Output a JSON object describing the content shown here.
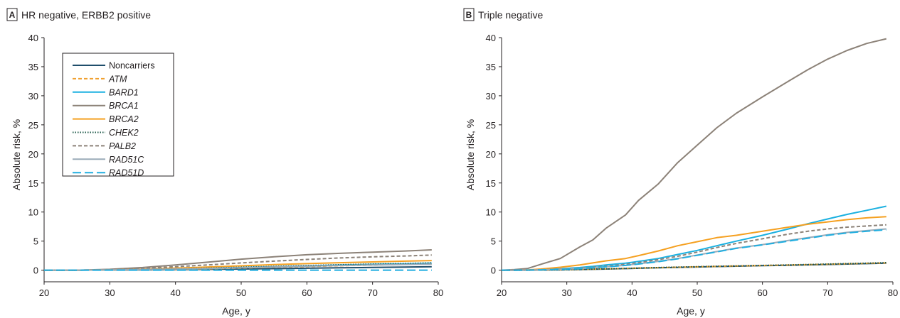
{
  "chart_data": [
    {
      "type": "line",
      "panel_letter": "A",
      "title": "HR negative, ERBB2 positive",
      "xlabel": "Age, y",
      "ylabel": "Absolute risk, %",
      "xlim": [
        20,
        80
      ],
      "ylim": [
        -2,
        40
      ],
      "xticks": [
        20,
        30,
        40,
        50,
        60,
        70,
        80
      ],
      "yticks": [
        0,
        5,
        10,
        15,
        20,
        25,
        30,
        35,
        40
      ],
      "grid": false,
      "legend_position": "top-left",
      "x": [
        20,
        25,
        30,
        35,
        40,
        45,
        50,
        55,
        60,
        65,
        70,
        75,
        79
      ],
      "series": [
        {
          "name": "Noncarriers",
          "color": "#1f4e6b",
          "style": "solid",
          "values": [
            0,
            0,
            0.02,
            0.05,
            0.09,
            0.14,
            0.2,
            0.26,
            0.33,
            0.4,
            0.47,
            0.54,
            0.6
          ]
        },
        {
          "name": "ATM",
          "color": "#f0a030",
          "style": "dash",
          "values": [
            0,
            0,
            0.03,
            0.08,
            0.15,
            0.25,
            0.37,
            0.5,
            0.63,
            0.76,
            0.88,
            1.0,
            1.1
          ]
        },
        {
          "name": "BARD1",
          "color": "#1ab0e0",
          "style": "solid",
          "values": [
            0,
            0,
            0.04,
            0.1,
            0.2,
            0.32,
            0.46,
            0.6,
            0.75,
            0.88,
            1.0,
            1.1,
            1.2
          ]
        },
        {
          "name": "BRCA1",
          "color": "#8c8278",
          "style": "solid",
          "values": [
            0,
            0,
            0.15,
            0.45,
            0.9,
            1.4,
            1.9,
            2.3,
            2.65,
            2.9,
            3.1,
            3.3,
            3.5
          ]
        },
        {
          "name": "BRCA2",
          "color": "#f5a020",
          "style": "solid",
          "values": [
            0,
            0,
            0.06,
            0.18,
            0.35,
            0.55,
            0.75,
            0.95,
            1.12,
            1.28,
            1.42,
            1.55,
            1.65
          ]
        },
        {
          "name": "CHEK2",
          "color": "#1f5a4a",
          "style": "dot",
          "values": [
            0,
            0,
            0.05,
            0.12,
            0.22,
            0.35,
            0.5,
            0.65,
            0.8,
            0.93,
            1.05,
            1.15,
            1.25
          ]
        },
        {
          "name": "PALB2",
          "color": "#8c8278",
          "style": "dash",
          "values": [
            0,
            0,
            0.1,
            0.3,
            0.6,
            0.9,
            1.25,
            1.55,
            1.85,
            2.1,
            2.3,
            2.45,
            2.6
          ]
        },
        {
          "name": "RAD51C",
          "color": "#9aabb8",
          "style": "solid",
          "values": [
            0,
            0,
            0.05,
            0.12,
            0.2,
            0.3,
            0.42,
            0.55,
            0.68,
            0.8,
            0.9,
            0.98,
            1.05
          ]
        },
        {
          "name": "RAD51D",
          "color": "#20aee0",
          "style": "longdash",
          "values": [
            0,
            0,
            0,
            0,
            0,
            0,
            0,
            0,
            0,
            0,
            0,
            0,
            0
          ]
        }
      ]
    },
    {
      "type": "line",
      "panel_letter": "B",
      "title": "Triple negative",
      "xlabel": "Age, y",
      "ylabel": "Absolute risk, %",
      "xlim": [
        20,
        80
      ],
      "ylim": [
        -2,
        40
      ],
      "xticks": [
        20,
        30,
        40,
        50,
        60,
        70,
        80
      ],
      "yticks": [
        0,
        5,
        10,
        15,
        20,
        25,
        30,
        35,
        40
      ],
      "grid": false,
      "x": [
        20,
        22,
        24,
        26,
        29,
        32,
        34,
        36,
        39,
        41,
        44,
        47,
        50,
        53,
        56,
        60,
        64,
        67,
        70,
        73,
        76,
        79
      ],
      "series": [
        {
          "name": "Noncarriers",
          "color": "#1f4e6b",
          "style": "solid",
          "values": [
            0,
            0,
            0,
            0.02,
            0.05,
            0.1,
            0.15,
            0.2,
            0.27,
            0.33,
            0.4,
            0.48,
            0.55,
            0.62,
            0.68,
            0.77,
            0.85,
            0.92,
            0.98,
            1.05,
            1.12,
            1.2
          ]
        },
        {
          "name": "ATM",
          "color": "#f0a030",
          "style": "dash",
          "values": [
            0,
            0,
            0,
            0.02,
            0.06,
            0.12,
            0.17,
            0.23,
            0.3,
            0.36,
            0.43,
            0.5,
            0.58,
            0.65,
            0.72,
            0.8,
            0.88,
            0.95,
            1.02,
            1.1,
            1.17,
            1.25
          ]
        },
        {
          "name": "BARD1",
          "color": "#1ab0e0",
          "style": "solid",
          "values": [
            0,
            0,
            0.02,
            0.1,
            0.25,
            0.45,
            0.65,
            0.9,
            1.2,
            1.5,
            2.0,
            2.7,
            3.4,
            4.2,
            5.0,
            6.0,
            7.1,
            8.0,
            8.8,
            9.6,
            10.3,
            11.0
          ]
        },
        {
          "name": "BRCA1",
          "color": "#8c8278",
          "style": "solid",
          "values": [
            0,
            0.1,
            0.3,
            1.0,
            2.0,
            4.0,
            5.2,
            7.2,
            9.5,
            12.0,
            14.8,
            18.5,
            21.5,
            24.5,
            27.0,
            29.8,
            32.5,
            34.5,
            36.3,
            37.8,
            39.0,
            39.8
          ]
        },
        {
          "name": "BRCA2",
          "color": "#f5a020",
          "style": "solid",
          "values": [
            0,
            0,
            0.05,
            0.2,
            0.5,
            0.9,
            1.25,
            1.6,
            2.0,
            2.5,
            3.3,
            4.2,
            4.9,
            5.6,
            6.0,
            6.7,
            7.4,
            7.9,
            8.3,
            8.7,
            9.0,
            9.2
          ]
        },
        {
          "name": "CHEK2",
          "color": "#1f5a4a",
          "style": "dot",
          "values": [
            0,
            0,
            0,
            0.03,
            0.07,
            0.13,
            0.18,
            0.23,
            0.3,
            0.37,
            0.45,
            0.53,
            0.6,
            0.67,
            0.74,
            0.82,
            0.9,
            0.97,
            1.05,
            1.12,
            1.2,
            1.3
          ]
        },
        {
          "name": "PALB2",
          "color": "#8c8278",
          "style": "dash",
          "values": [
            0,
            0,
            0.02,
            0.08,
            0.2,
            0.35,
            0.5,
            0.7,
            1.0,
            1.3,
            1.8,
            2.4,
            3.1,
            3.9,
            4.6,
            5.4,
            6.2,
            6.7,
            7.1,
            7.4,
            7.6,
            7.8
          ]
        },
        {
          "name": "RAD51C",
          "color": "#9aabb8",
          "style": "solid",
          "values": [
            0,
            0,
            0.02,
            0.06,
            0.15,
            0.28,
            0.42,
            0.6,
            0.85,
            1.1,
            1.5,
            2.0,
            2.6,
            3.2,
            3.8,
            4.4,
            5.1,
            5.6,
            6.1,
            6.5,
            6.8,
            7.1
          ]
        },
        {
          "name": "RAD51D",
          "color": "#20aee0",
          "style": "longdash",
          "values": [
            0,
            0,
            0.02,
            0.05,
            0.13,
            0.25,
            0.4,
            0.58,
            0.82,
            1.05,
            1.45,
            1.95,
            2.55,
            3.15,
            3.75,
            4.35,
            5.0,
            5.5,
            6.0,
            6.4,
            6.7,
            6.95
          ]
        }
      ]
    }
  ]
}
